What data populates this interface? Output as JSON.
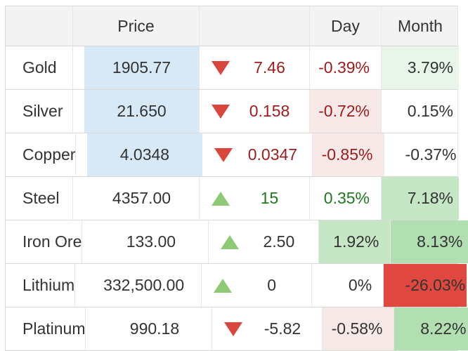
{
  "header": {
    "name": "",
    "price": "Price",
    "change": "",
    "day": "Day",
    "month": "Month"
  },
  "rows": [
    {
      "name": "Gold",
      "price": "1905.77",
      "price_highlight": true,
      "direction": "down",
      "change": "7.46",
      "change_tone": "red",
      "day": "-0.39%",
      "day_tone": "red",
      "day_bg": "none",
      "month": "3.79%",
      "month_bg": "green-light",
      "month_tone": "dark"
    },
    {
      "name": "Silver",
      "price": "21.650",
      "price_highlight": true,
      "direction": "down",
      "change": "0.158",
      "change_tone": "red",
      "day": "-0.72%",
      "day_tone": "red",
      "day_bg": "pink",
      "month": "0.15%",
      "month_bg": "none",
      "month_tone": "dark"
    },
    {
      "name": "Copper",
      "price": "4.0348",
      "price_highlight": true,
      "direction": "down",
      "change": "0.0347",
      "change_tone": "red",
      "day": "-0.85%",
      "day_tone": "red",
      "day_bg": "pink",
      "month": "-0.37%",
      "month_bg": "none",
      "month_tone": "dark"
    },
    {
      "name": "Steel",
      "price": "4357.00",
      "price_highlight": false,
      "direction": "up",
      "change": "15",
      "change_tone": "green",
      "day": "0.35%",
      "day_tone": "green",
      "day_bg": "none",
      "month": "7.18%",
      "month_bg": "green-mid",
      "month_tone": "dark"
    },
    {
      "name": "Iron Ore",
      "price": "133.00",
      "price_highlight": false,
      "direction": "up",
      "change": "2.50",
      "change_tone": "dark",
      "day": "1.92%",
      "day_tone": "dark",
      "day_bg": "green-mid",
      "month": "8.13%",
      "month_bg": "green-deep",
      "month_tone": "dark"
    },
    {
      "name": "Lithium",
      "price": "332,500.00",
      "price_highlight": false,
      "direction": "up",
      "change": "0",
      "change_tone": "dark",
      "day": "0%",
      "day_tone": "dark",
      "day_bg": "none",
      "month": "-26.03%",
      "month_bg": "red",
      "month_tone": "dark"
    },
    {
      "name": "Platinum",
      "price": "990.18",
      "price_highlight": false,
      "direction": "down",
      "change": "-5.82",
      "change_tone": "dark",
      "day": "-0.58%",
      "day_tone": "dark",
      "day_bg": "pink",
      "month": "8.22%",
      "month_bg": "green-deep",
      "month_tone": "dark"
    }
  ],
  "colors": {
    "page_bg": "#ffffff",
    "header_bg": "#f3f3f3",
    "text_dark": "#333333",
    "text_red": "#9f1b1b",
    "text_green": "#1f7a1f",
    "price_flash_blue": "#d7e9f6",
    "day_pink": "#f8e9e9",
    "green_light": "#eaf5ea",
    "green_mid": "#c5e7c5",
    "green_deep": "#b2dfb2",
    "neg_red": "#e0483f",
    "arrow_red": "#d9463c",
    "arrow_green": "#8ec973",
    "border_h": "#d9d9d9",
    "border_v": "#e7e7e7"
  }
}
